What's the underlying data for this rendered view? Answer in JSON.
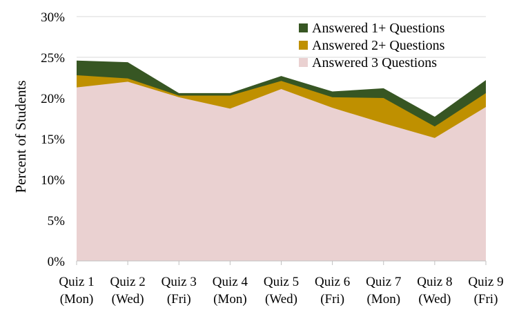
{
  "chart_data": {
    "type": "area",
    "stacked": false,
    "categories": [
      [
        "Quiz 1",
        "(Mon)"
      ],
      [
        "Quiz 2",
        "(Wed)"
      ],
      [
        "Quiz 3",
        "(Fri)"
      ],
      [
        "Quiz 4",
        "(Mon)"
      ],
      [
        "Quiz 5",
        "(Wed)"
      ],
      [
        "Quiz 6",
        "(Fri)"
      ],
      [
        "Quiz 7",
        "(Mon)"
      ],
      [
        "Quiz 8",
        "(Wed)"
      ],
      [
        "Quiz 9",
        "(Fri)"
      ]
    ],
    "series": [
      {
        "name": "Answered 1+ Questions",
        "color": "#375623",
        "values": [
          24.6,
          24.4,
          20.6,
          20.6,
          22.7,
          20.8,
          21.2,
          17.7,
          22.2
        ]
      },
      {
        "name": "Answered 2+ Questions",
        "color": "#BF9000",
        "values": [
          22.8,
          22.4,
          20.3,
          20.3,
          22.1,
          20.1,
          20.0,
          16.5,
          20.6
        ]
      },
      {
        "name": "Answered 3 Questions",
        "color": "#EAD1D1",
        "values": [
          21.3,
          22.0,
          20.1,
          18.7,
          21.1,
          18.8,
          16.9,
          15.1,
          18.9
        ]
      }
    ],
    "ylabel": "Percent of Students",
    "xlabel": "",
    "ylim": [
      0,
      30
    ],
    "ytick_values": [
      0,
      5,
      10,
      15,
      20,
      25,
      30
    ],
    "ytick_labels": [
      "0%",
      "5%",
      "10%",
      "15%",
      "20%",
      "25%",
      "30%"
    ],
    "grid": "horizontal",
    "legend_position": "top-right"
  }
}
